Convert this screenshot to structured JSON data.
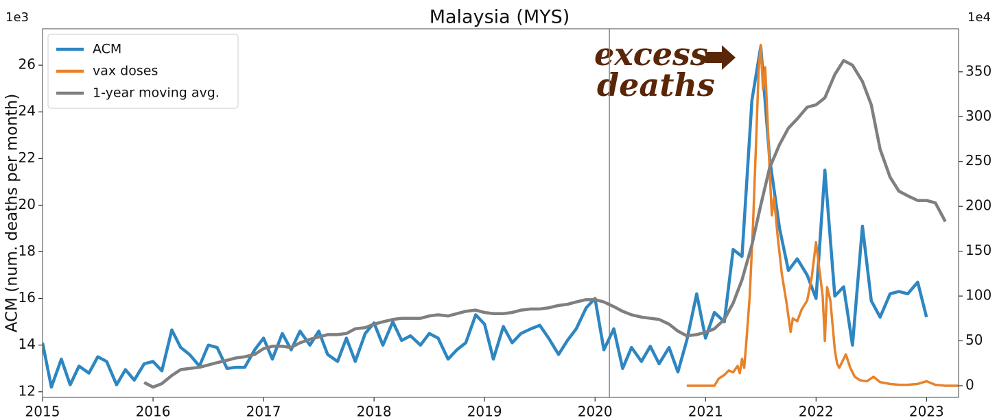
{
  "chart_data": {
    "type": "line",
    "title": "Malaysia (MYS)",
    "ylabel": "ACM (num. deaths per month)",
    "y_offset_label": "1e3",
    "y2_offset_label": "1e4",
    "annotation_lines": [
      "excess",
      "deaths"
    ],
    "xlim": [
      2015,
      2023.29
    ],
    "xticks": [
      2015,
      2016,
      2017,
      2018,
      2019,
      2020,
      2021,
      2022,
      2023
    ],
    "ylim": [
      11.76,
      27.56
    ],
    "yticks": [
      12,
      14,
      16,
      18,
      20,
      22,
      24,
      26
    ],
    "y2lim": [
      -13,
      398
    ],
    "y2ticks": [
      0,
      50,
      100,
      150,
      200,
      250,
      300,
      350
    ],
    "vline": 2020.13,
    "legend": "upper left",
    "grid": false,
    "series": [
      {
        "name": "ACM",
        "color": "#2e86c1",
        "axis": "y",
        "x": [
          2015.0,
          2015.08,
          2015.17,
          2015.25,
          2015.33,
          2015.42,
          2015.5,
          2015.58,
          2015.67,
          2015.75,
          2015.83,
          2015.92,
          2016.0,
          2016.08,
          2016.17,
          2016.25,
          2016.33,
          2016.42,
          2016.5,
          2016.58,
          2016.67,
          2016.75,
          2016.83,
          2016.92,
          2017.0,
          2017.08,
          2017.17,
          2017.25,
          2017.33,
          2017.42,
          2017.5,
          2017.58,
          2017.67,
          2017.75,
          2017.83,
          2017.92,
          2018.0,
          2018.08,
          2018.17,
          2018.25,
          2018.33,
          2018.42,
          2018.5,
          2018.58,
          2018.67,
          2018.75,
          2018.83,
          2018.92,
          2019.0,
          2019.08,
          2019.17,
          2019.25,
          2019.33,
          2019.42,
          2019.5,
          2019.58,
          2019.67,
          2019.75,
          2019.83,
          2019.92,
          2020.0,
          2020.08,
          2020.17,
          2020.25,
          2020.33,
          2020.42,
          2020.5,
          2020.58,
          2020.67,
          2020.75,
          2020.83,
          2020.92,
          2021.0,
          2021.08,
          2021.17,
          2021.25,
          2021.33,
          2021.42,
          2021.5,
          2021.58,
          2021.67,
          2021.75,
          2021.83,
          2021.92,
          2022.0,
          2022.08,
          2022.17,
          2022.25,
          2022.33,
          2022.42,
          2022.5,
          2022.58,
          2022.67,
          2022.75,
          2022.83,
          2022.92,
          2023.0
        ],
        "values": [
          14.1,
          12.2,
          13.4,
          12.3,
          13.1,
          12.8,
          13.5,
          13.3,
          12.3,
          12.95,
          12.5,
          13.2,
          13.3,
          12.9,
          14.65,
          13.9,
          13.6,
          13.1,
          14.0,
          13.9,
          13.0,
          13.05,
          13.05,
          13.8,
          14.3,
          13.4,
          14.5,
          13.8,
          14.6,
          14.0,
          14.6,
          13.6,
          13.3,
          14.3,
          13.3,
          14.5,
          14.95,
          14.0,
          15.0,
          14.2,
          14.4,
          14.0,
          14.5,
          14.3,
          13.4,
          13.8,
          14.1,
          15.3,
          14.9,
          13.4,
          14.8,
          14.1,
          14.5,
          14.7,
          14.85,
          14.3,
          13.6,
          14.2,
          14.7,
          15.6,
          16.0,
          13.8,
          14.7,
          13.0,
          13.9,
          13.3,
          13.95,
          13.2,
          13.9,
          12.85,
          14.2,
          16.2,
          14.3,
          15.4,
          15.0,
          18.1,
          17.8,
          24.5,
          26.8,
          22.0,
          19.0,
          17.2,
          17.7,
          17.0,
          16.0,
          21.5,
          16.1,
          16.5,
          14.0,
          19.1,
          15.9,
          15.2,
          16.2,
          16.3,
          16.2,
          16.7,
          15.2
        ]
      },
      {
        "name": "vax doses",
        "color": "#e8822a",
        "axis": "y2",
        "x": [
          2020.83,
          2021.0,
          2021.08,
          2021.12,
          2021.17,
          2021.21,
          2021.25,
          2021.29,
          2021.31,
          2021.33,
          2021.35,
          2021.37,
          2021.4,
          2021.43,
          2021.46,
          2021.48,
          2021.5,
          2021.52,
          2021.54,
          2021.56,
          2021.58,
          2021.6,
          2021.62,
          2021.65,
          2021.69,
          2021.73,
          2021.77,
          2021.79,
          2021.83,
          2021.87,
          2021.92,
          2021.96,
          2022.0,
          2022.02,
          2022.06,
          2022.08,
          2022.1,
          2022.13,
          2022.17,
          2022.19,
          2022.21,
          2022.25,
          2022.27,
          2022.31,
          2022.35,
          2022.4,
          2022.46,
          2022.52,
          2022.58,
          2022.67,
          2022.75,
          2022.83,
          2022.92,
          2023.0,
          2023.08,
          2023.17,
          2023.29
        ],
        "values": [
          0,
          0,
          0,
          8,
          12,
          17,
          15,
          22,
          14,
          30,
          20,
          50,
          100,
          180,
          280,
          350,
          380,
          330,
          355,
          300,
          240,
          190,
          210,
          170,
          125,
          95,
          60,
          75,
          72,
          85,
          95,
          120,
          160,
          140,
          100,
          50,
          110,
          95,
          40,
          25,
          20,
          30,
          35,
          20,
          10,
          6,
          5,
          10,
          4,
          2,
          1,
          1,
          2,
          5,
          1,
          0,
          0
        ]
      },
      {
        "name": "1-year moving avg.",
        "color": "#7f7f7f",
        "axis": "y",
        "x": [
          2015.92,
          2016.0,
          2016.08,
          2016.17,
          2016.25,
          2016.33,
          2016.42,
          2016.5,
          2016.58,
          2016.67,
          2016.75,
          2016.83,
          2016.92,
          2017.0,
          2017.08,
          2017.17,
          2017.25,
          2017.33,
          2017.42,
          2017.5,
          2017.58,
          2017.67,
          2017.75,
          2017.83,
          2017.92,
          2018.0,
          2018.08,
          2018.17,
          2018.25,
          2018.33,
          2018.42,
          2018.5,
          2018.58,
          2018.67,
          2018.75,
          2018.83,
          2018.92,
          2019.0,
          2019.08,
          2019.17,
          2019.25,
          2019.33,
          2019.42,
          2019.5,
          2019.58,
          2019.67,
          2019.75,
          2019.83,
          2019.92,
          2020.0,
          2020.08,
          2020.17,
          2020.25,
          2020.33,
          2020.42,
          2020.5,
          2020.58,
          2020.67,
          2020.75,
          2020.83,
          2020.92,
          2021.0,
          2021.08,
          2021.17,
          2021.25,
          2021.33,
          2021.42,
          2021.5,
          2021.58,
          2021.67,
          2021.75,
          2021.83,
          2021.92,
          2022.0,
          2022.08,
          2022.17,
          2022.25,
          2022.33,
          2022.42,
          2022.5,
          2022.58,
          2022.67,
          2022.75,
          2022.83,
          2022.92,
          2023.0,
          2023.08,
          2023.17
        ],
        "values": [
          12.4,
          12.2,
          12.35,
          12.7,
          12.95,
          13.0,
          13.05,
          13.15,
          13.25,
          13.35,
          13.45,
          13.5,
          13.6,
          13.85,
          13.95,
          13.95,
          13.9,
          14.1,
          14.25,
          14.35,
          14.45,
          14.45,
          14.5,
          14.7,
          14.75,
          14.9,
          15.0,
          15.1,
          15.15,
          15.15,
          15.15,
          15.25,
          15.3,
          15.25,
          15.35,
          15.45,
          15.5,
          15.4,
          15.35,
          15.35,
          15.4,
          15.5,
          15.55,
          15.55,
          15.6,
          15.7,
          15.75,
          15.85,
          15.95,
          15.95,
          15.85,
          15.65,
          15.45,
          15.3,
          15.2,
          15.15,
          15.1,
          14.9,
          14.6,
          14.4,
          14.45,
          14.55,
          14.7,
          15.1,
          15.8,
          16.8,
          18.3,
          20.0,
          21.6,
          22.6,
          23.3,
          23.7,
          24.2,
          24.3,
          24.6,
          25.6,
          26.2,
          26.0,
          25.3,
          24.3,
          22.4,
          21.2,
          20.6,
          20.4,
          20.2,
          20.2,
          20.1,
          19.3
        ]
      }
    ]
  }
}
